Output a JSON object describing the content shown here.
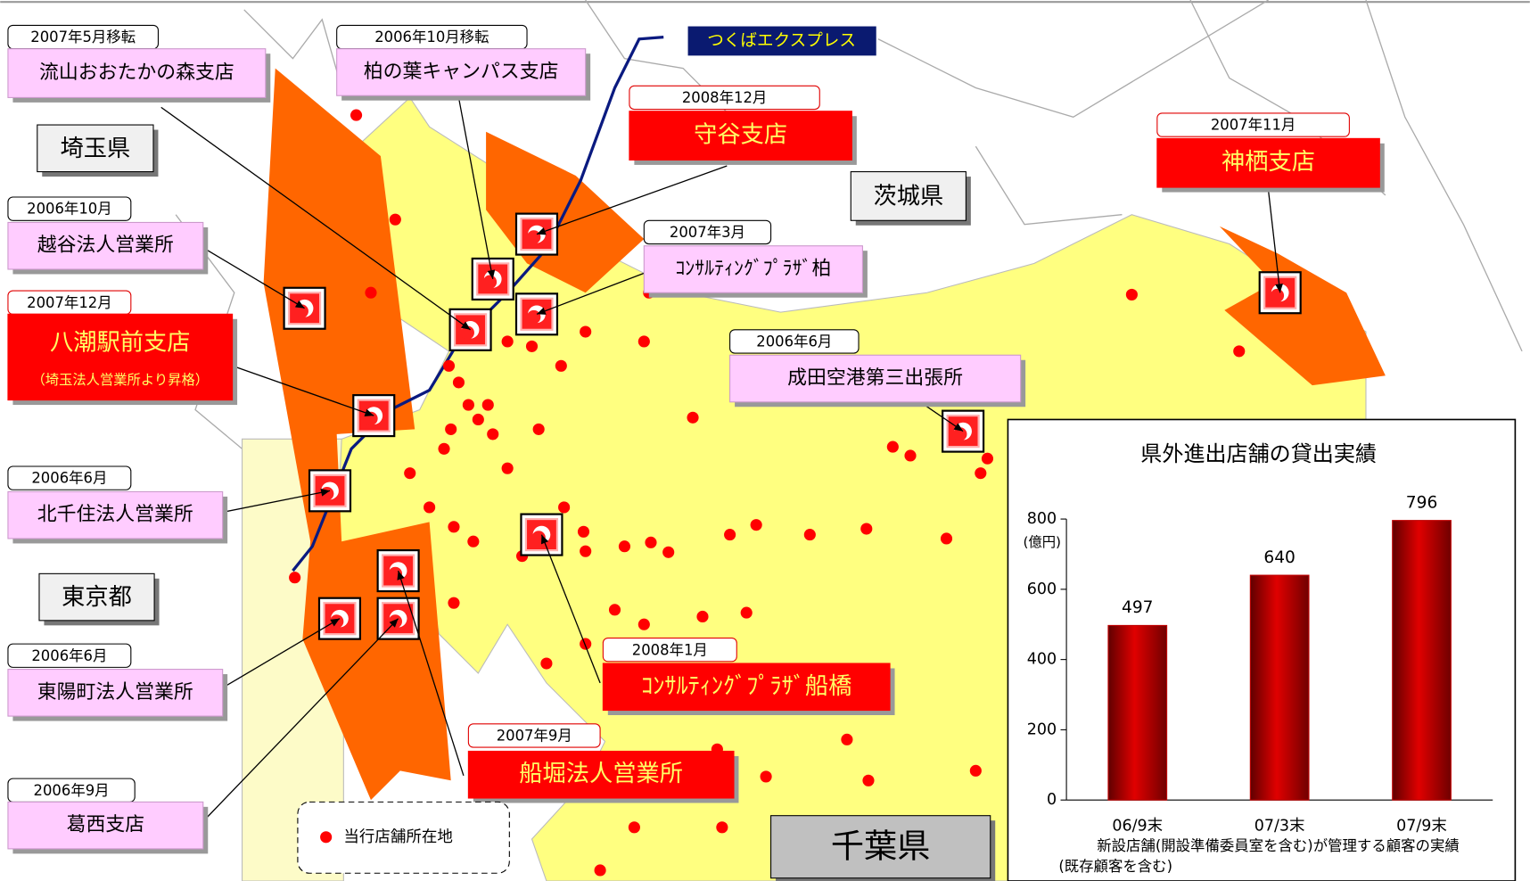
{
  "prefectures": [
    "埼玉県",
    "茨城県",
    "東京都",
    "千葉県"
  ],
  "line_label": "つくばエクスプレス",
  "legend": "当行店舗所在地",
  "branches": [
    {
      "date": "2007年5月移転",
      "name": "流山おおたかの森支店"
    },
    {
      "date": "2006年10月移転",
      "name": "柏の葉キャンパス支店"
    },
    {
      "date": "2008年12月",
      "name": "守谷支店"
    },
    {
      "date": "2007年11月",
      "name": "神栖支店"
    },
    {
      "date": "2006年10月",
      "name": "越谷法人営業所"
    },
    {
      "date": "2007年3月",
      "name": "ｺﾝｻﾙﾃｨﾝｸﾞﾌﾟﾗｻﾞ柏"
    },
    {
      "date": "2007年12月",
      "name": "八潮駅前支店",
      "note": "（埼玉法人営業所より昇格）"
    },
    {
      "date": "2006年6月",
      "name": "成田空港第三出張所"
    },
    {
      "date": "2006年6月",
      "name": "北千住法人営業所"
    },
    {
      "date": "2006年6月",
      "name": "東陽町法人営業所"
    },
    {
      "date": "2008年1月",
      "name": "ｺﾝｻﾙﾃｨﾝｸﾞﾌﾟﾗｻﾞ船橋"
    },
    {
      "date": "2007年9月",
      "name": "船堀法人営業所"
    },
    {
      "date": "2006年9月",
      "name": "葛西支店"
    }
  ],
  "chart_data": {
    "type": "bar",
    "title": "県外進出店舗の貸出実績",
    "y_unit": "(億円)",
    "categories": [
      "06/9末",
      "07/3末",
      "07/9末"
    ],
    "values": [
      497,
      640,
      796
    ],
    "color": "#c00000",
    "ylim": [
      0,
      800
    ],
    "yticks": [
      0,
      200,
      400,
      600,
      800
    ],
    "caption": [
      "新設店舗(開設準備委員室を含む)が管理する顧客の実績",
      "(既存顧客を含む)"
    ]
  }
}
